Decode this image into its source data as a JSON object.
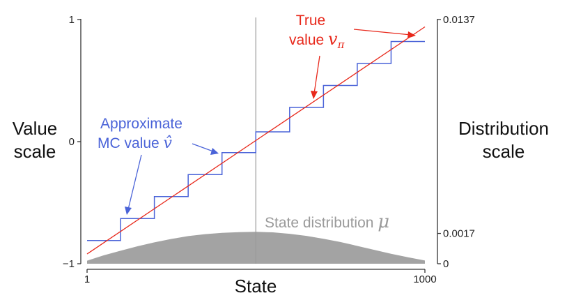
{
  "chart_data": {
    "type": "line",
    "xlabel": "State",
    "ylabel_left": [
      "Value",
      "scale"
    ],
    "ylabel_right": [
      "Distribution",
      "scale"
    ],
    "x_ticks": [
      "1",
      "1000"
    ],
    "xlim": [
      1,
      1000
    ],
    "ylim_left": [
      -1,
      1
    ],
    "y_ticks_left": [
      {
        "value": 1,
        "label": "1"
      },
      {
        "value": 0,
        "label": "0"
      },
      {
        "value": -1,
        "label": "−1"
      }
    ],
    "ylim_right": [
      0,
      0.0137
    ],
    "y_ticks_right": [
      {
        "value": 0.0137,
        "label": "0.0137"
      },
      {
        "value": 0.0017,
        "label": "0.0017"
      },
      {
        "value": 0,
        "label": "0"
      }
    ],
    "series": [
      {
        "name": "True value",
        "color": "#e8281b",
        "kind": "line",
        "x": [
          1,
          1000
        ],
        "y": [
          -0.92,
          0.94
        ]
      },
      {
        "name": "Approximate MC value",
        "color": "#4a63d8",
        "kind": "step",
        "bins": [
          {
            "x0": 1,
            "x1": 100,
            "y": -0.81
          },
          {
            "x0": 100,
            "x1": 200,
            "y": -0.63
          },
          {
            "x0": 200,
            "x1": 300,
            "y": -0.45
          },
          {
            "x0": 300,
            "x1": 400,
            "y": -0.27
          },
          {
            "x0": 400,
            "x1": 500,
            "y": -0.09
          },
          {
            "x0": 500,
            "x1": 600,
            "y": 0.08
          },
          {
            "x0": 600,
            "x1": 700,
            "y": 0.28
          },
          {
            "x0": 700,
            "x1": 800,
            "y": 0.46
          },
          {
            "x0": 800,
            "x1": 900,
            "y": 0.64
          },
          {
            "x0": 900,
            "x1": 1000,
            "y": 0.82
          }
        ]
      },
      {
        "name": "State distribution",
        "color": "#a3a3a3",
        "kind": "area",
        "axis": "right",
        "x": [
          1,
          50,
          100,
          150,
          200,
          250,
          300,
          350,
          400,
          450,
          500,
          550,
          600,
          650,
          700,
          750,
          800,
          850,
          900,
          950,
          1000
        ],
        "y": [
          0.00017,
          0.00047,
          0.00073,
          0.00098,
          0.0012,
          0.00139,
          0.00155,
          0.00166,
          0.00173,
          0.00177,
          0.00179,
          0.00176,
          0.00168,
          0.00156,
          0.0014,
          0.00122,
          0.001,
          0.00078,
          0.00056,
          0.00036,
          0.00018
        ]
      }
    ],
    "vertical_marker": {
      "x": 500,
      "color": "#9a9a9a"
    },
    "annotations": {
      "true_value": {
        "lines": [
          "True",
          "value "
        ],
        "symbol": "v",
        "subscript": "π",
        "color": "#e8281b"
      },
      "approx_value": {
        "lines": [
          "Approximate",
          "MC value "
        ],
        "symbol": "v̂",
        "color": "#4a63d8"
      },
      "state_distribution": {
        "text": "State distribution ",
        "symbol": "μ",
        "color": "#9a9a9a"
      }
    },
    "axis_color": "#333333"
  }
}
